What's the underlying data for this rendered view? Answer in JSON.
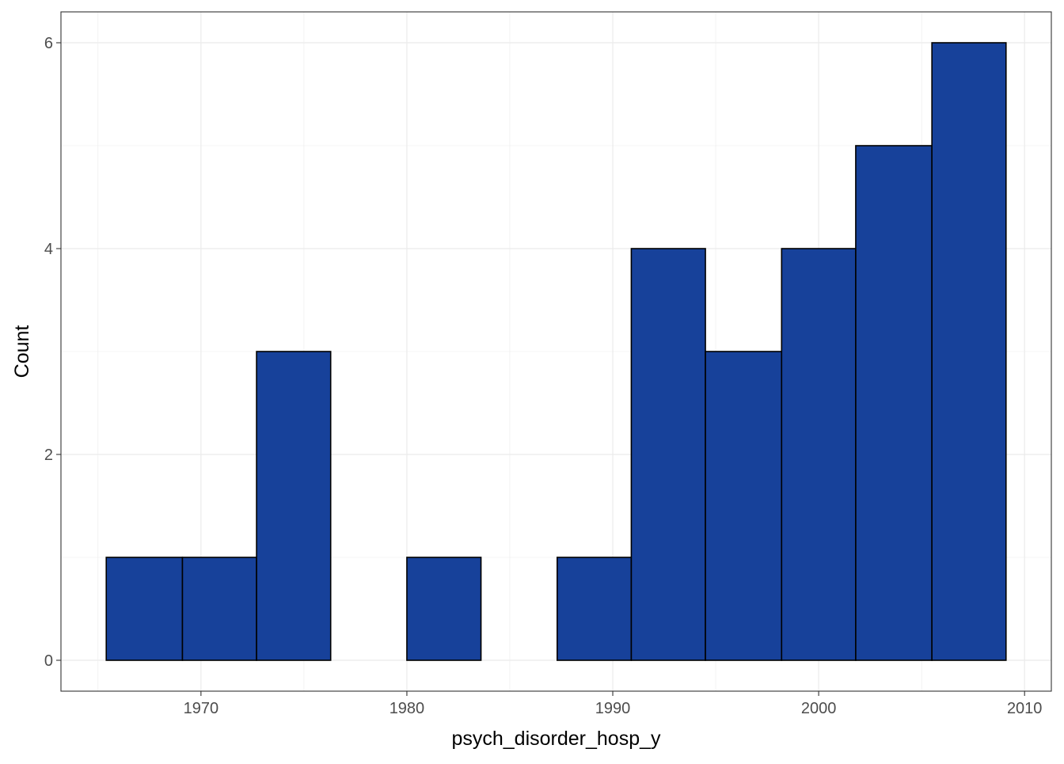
{
  "chart_data": {
    "type": "bar",
    "subtype": "histogram",
    "xlabel": "psych_disorder_hosp_y",
    "ylabel": "Count",
    "bins": [
      {
        "x0": 1965.4,
        "x1": 1969.1,
        "count": 1
      },
      {
        "x0": 1969.1,
        "x1": 1972.7,
        "count": 1
      },
      {
        "x0": 1972.7,
        "x1": 1976.3,
        "count": 3
      },
      {
        "x0": 1976.3,
        "x1": 1980.0,
        "count": 0
      },
      {
        "x0": 1980.0,
        "x1": 1983.6,
        "count": 1
      },
      {
        "x0": 1983.6,
        "x1": 1987.3,
        "count": 0
      },
      {
        "x0": 1987.3,
        "x1": 1990.9,
        "count": 1
      },
      {
        "x0": 1990.9,
        "x1": 1994.5,
        "count": 4
      },
      {
        "x0": 1994.5,
        "x1": 1998.2,
        "count": 3
      },
      {
        "x0": 1998.2,
        "x1": 2001.8,
        "count": 4
      },
      {
        "x0": 2001.8,
        "x1": 2005.5,
        "count": 5
      },
      {
        "x0": 2005.5,
        "x1": 2009.1,
        "count": 6
      }
    ],
    "xlim": [
      1963.2,
      2011.3
    ],
    "ylim": [
      -0.3,
      6.3
    ],
    "xticks": [
      1970,
      1980,
      1990,
      2000,
      2010
    ],
    "xtick_labels": [
      "1970",
      "1980",
      "1990",
      "2000",
      "2010"
    ],
    "yticks": [
      0,
      2,
      4,
      6
    ],
    "ytick_labels": [
      "0",
      "2",
      "4",
      "6"
    ],
    "grid": true,
    "legend": "none",
    "colors": {
      "bar_fill": "#17419A",
      "bar_stroke": "#000000",
      "grid": "#ebebeb",
      "panel_border": "#333333",
      "tick_text": "#4d4d4d"
    }
  }
}
